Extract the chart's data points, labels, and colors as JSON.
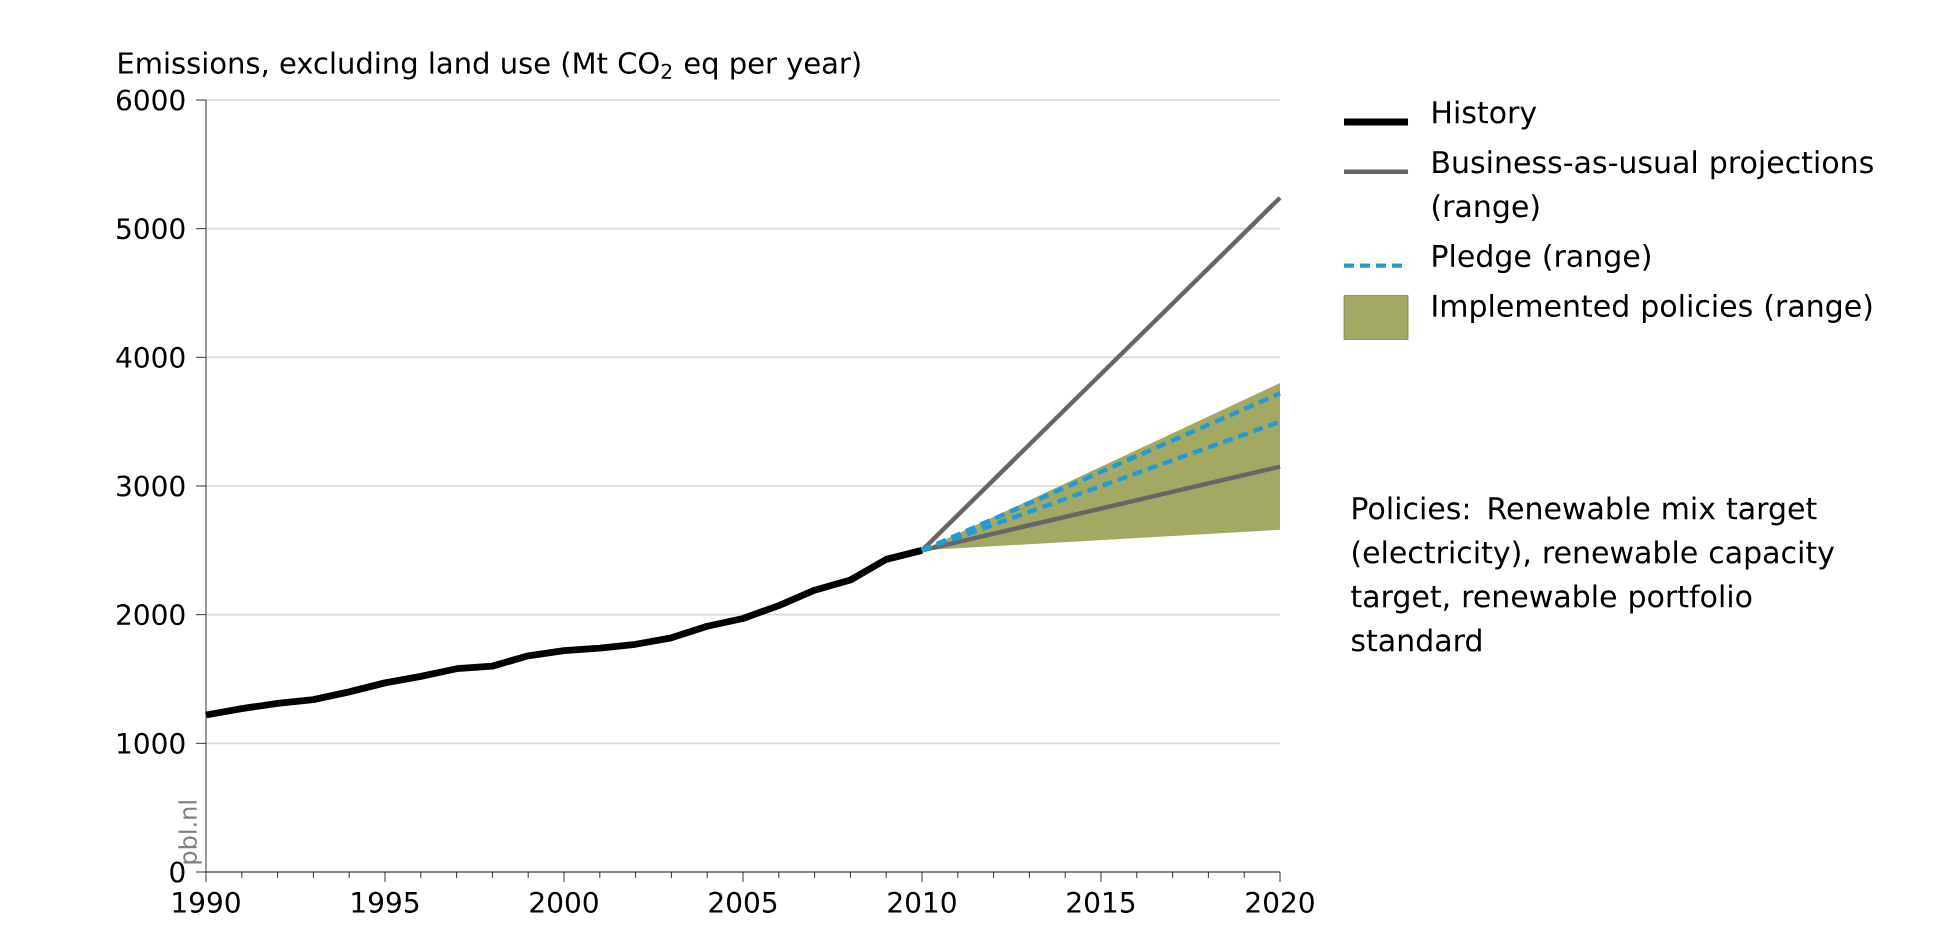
{
  "chart_data": {
    "type": "line",
    "title": "Emissions, excluding land use (Mt CO$_{2}$ eq per year)",
    "x": [
      1990,
      1991,
      1992,
      1993,
      1994,
      1995,
      1996,
      1997,
      1998,
      1999,
      2000,
      2001,
      2002,
      2003,
      2004,
      2005,
      2006,
      2007,
      2008,
      2009,
      2010,
      2020
    ],
    "series": [
      {
        "name": "History",
        "color": "#000000",
        "values": [
          1220,
          1270,
          1310,
          1340,
          1400,
          1470,
          1520,
          1580,
          1600,
          1680,
          1720,
          1740,
          1770,
          1820,
          1910,
          1970,
          2070,
          2190,
          2270,
          2430,
          2500,
          null
        ]
      },
      {
        "name": "Business-as-usual projections (range)",
        "color": "#666666",
        "values": [
          null,
          null,
          null,
          null,
          null,
          null,
          null,
          null,
          null,
          null,
          null,
          null,
          null,
          null,
          null,
          null,
          null,
          null,
          null,
          null,
          2500,
          5240
        ]
      },
      {
        "color": "#666666",
        "values": [
          null,
          null,
          null,
          null,
          null,
          null,
          null,
          null,
          null,
          null,
          null,
          null,
          null,
          null,
          null,
          null,
          null,
          null,
          null,
          null,
          2500,
          3150
        ]
      },
      {
        "name": "Pledge (range)",
        "color": "#1f9bd7",
        "line_style": "dashed",
        "values": [
          null,
          null,
          null,
          null,
          null,
          null,
          null,
          null,
          null,
          null,
          null,
          null,
          null,
          null,
          null,
          null,
          null,
          null,
          null,
          null,
          2500,
          3720
        ]
      },
      {
        "color": "#1f9bd7",
        "line_style": "dashed",
        "values": [
          null,
          null,
          null,
          null,
          null,
          null,
          null,
          null,
          null,
          null,
          null,
          null,
          null,
          null,
          null,
          null,
          null,
          null,
          null,
          null,
          2500,
          3500
        ]
      },
      {
        "type": "area",
        "name": "Implemented policies (range)",
        "color": "#a3a862",
        "values": [
          null,
          null,
          null,
          null,
          null,
          null,
          null,
          null,
          null,
          null,
          null,
          null,
          null,
          null,
          null,
          null,
          null,
          null,
          null,
          null,
          null,
          null
        ],
        "lower": [
          null,
          null,
          null,
          null,
          null,
          null,
          null,
          null,
          null,
          null,
          null,
          null,
          null,
          null,
          null,
          null,
          null,
          null,
          null,
          null,
          2500,
          2660
        ],
        "upper": [
          null,
          null,
          null,
          null,
          null,
          null,
          null,
          null,
          null,
          null,
          null,
          null,
          null,
          null,
          null,
          null,
          null,
          null,
          null,
          null,
          2500,
          3800
        ]
      }
    ],
    "xlim": [
      1990,
      2020
    ],
    "ylim": [
      0,
      6000
    ],
    "xticks": [
      1990,
      1995,
      2000,
      2005,
      2010,
      2015,
      2020
    ],
    "yticks": [
      0,
      1000,
      2000,
      3000,
      4000,
      5000,
      6000
    ],
    "grid": "y",
    "legend": "right",
    "marker": "none",
    "line_style": "solid",
    "annotations": [
      "Policies: Renewable mix target (electricity), renewable capacity target, renewable portfolio standard",
      "pbl.nl"
    ]
  }
}
